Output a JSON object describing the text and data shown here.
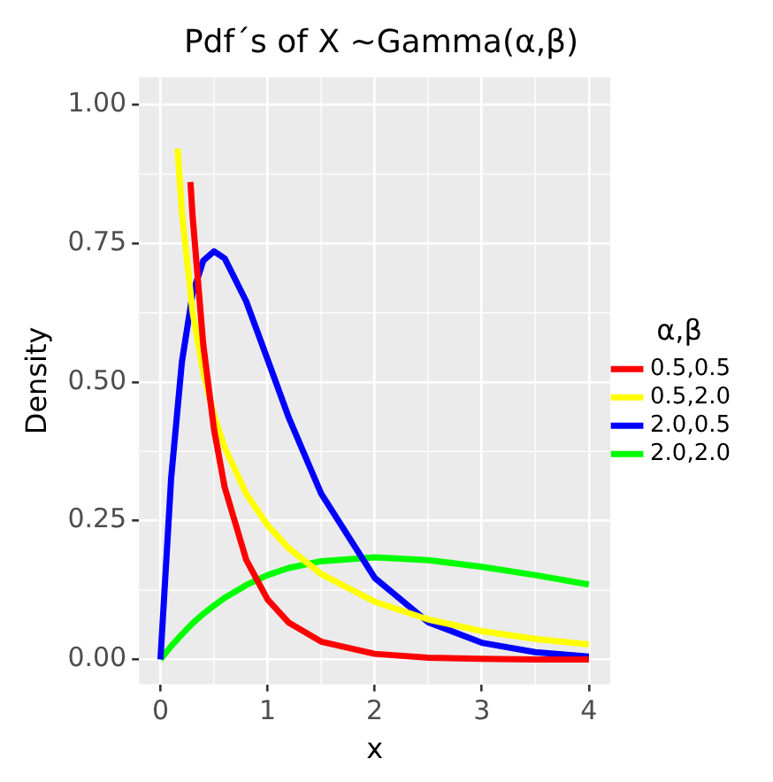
{
  "chart_data": {
    "type": "line",
    "title": "Pdf´s of X ~Gamma(α,β)",
    "xlabel": "x",
    "ylabel": "Density",
    "legend_title": "α,β",
    "legend": "right",
    "grid": true,
    "marker": "none",
    "line_style": "solid",
    "xlim": [
      -0.2,
      4.2
    ],
    "xticks": [
      0,
      1,
      2,
      3,
      4
    ],
    "ylim": [
      -0.045,
      1.05
    ],
    "yticks": [
      {
        "value": 0,
        "label": "0.00"
      },
      {
        "value": 0.25,
        "label": "0.25"
      },
      {
        "value": 0.5,
        "label": "0.50"
      },
      {
        "value": 0.75,
        "label": "0.75"
      },
      {
        "value": 1,
        "label": "1.00"
      }
    ],
    "series": [
      {
        "name": "0.5,0.5",
        "color": "#ff0000",
        "x": [
          0.28,
          0.3,
          0.4,
          0.5,
          0.6,
          0.8,
          1,
          1.2,
          1.5,
          2,
          2.5,
          3,
          3.5,
          4
        ],
        "values": [
          0.861,
          0.8,
          0.567,
          0.415,
          0.31,
          0.18,
          0.108,
          0.066,
          0.032,
          0.01,
          0.003,
          0.001,
          0,
          0
        ]
      },
      {
        "name": "0.5,2.0",
        "color": "#ffff00",
        "x": [
          0.16,
          0.2,
          0.3,
          0.4,
          0.5,
          0.6,
          0.8,
          1,
          1.2,
          1.5,
          2,
          2.5,
          3,
          3.5,
          4
        ],
        "values": [
          0.921,
          0.807,
          0.627,
          0.517,
          0.44,
          0.382,
          0.299,
          0.242,
          0.2,
          0.154,
          0.104,
          0.072,
          0.051,
          0.037,
          0.027
        ]
      },
      {
        "name": "2.0,0.5",
        "color": "#0000ff",
        "x": [
          0,
          0.1,
          0.2,
          0.3,
          0.4,
          0.5,
          0.6,
          0.8,
          1,
          1.2,
          1.5,
          2,
          2.5,
          3,
          3.5,
          4
        ],
        "values": [
          0,
          0.327,
          0.536,
          0.659,
          0.719,
          0.736,
          0.723,
          0.646,
          0.541,
          0.435,
          0.299,
          0.147,
          0.067,
          0.03,
          0.013,
          0.005
        ]
      },
      {
        "name": "2.0,2.0",
        "color": "#00ff00",
        "x": [
          0,
          0.1,
          0.2,
          0.3,
          0.4,
          0.5,
          0.6,
          0.8,
          1,
          1.2,
          1.5,
          2,
          2.5,
          3,
          3.5,
          4
        ],
        "values": [
          0,
          0.024,
          0.045,
          0.065,
          0.082,
          0.097,
          0.111,
          0.134,
          0.152,
          0.165,
          0.177,
          0.184,
          0.179,
          0.167,
          0.152,
          0.135
        ]
      }
    ]
  }
}
